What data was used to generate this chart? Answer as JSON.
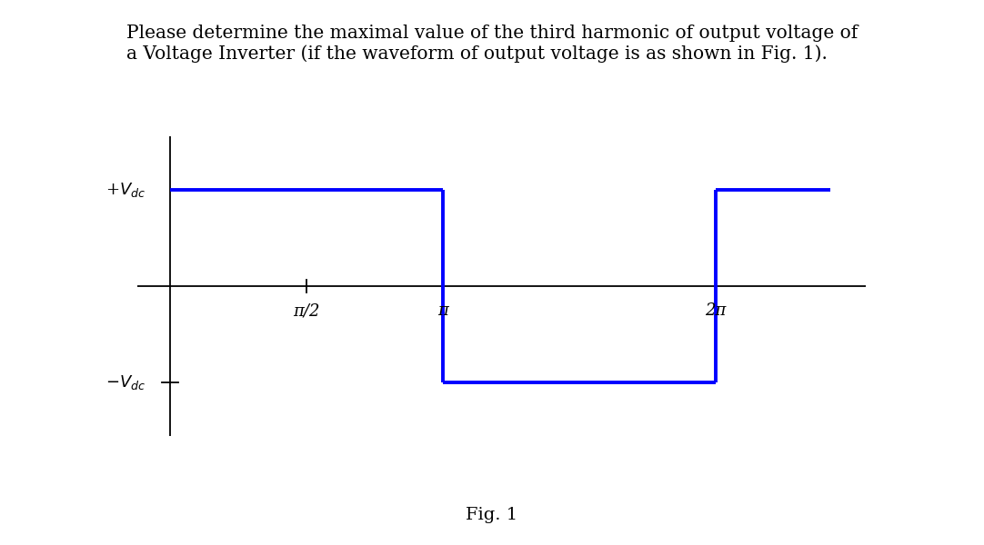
{
  "title_text": "Please determine the maximal value of the third harmonic of output voltage of\na Voltage Inverter (if the waveform of output voltage is as shown in Fig. 1).",
  "title_fontsize": 14.5,
  "fig_label": "Fig. 1",
  "waveform_color": "#0000FF",
  "waveform_linewidth": 2.8,
  "axis_color": "#000000",
  "axis_linewidth": 1.3,
  "background_color": "#FFFFFF",
  "vdc": 1.0,
  "x_tick_labels": [
    "π/2",
    "π",
    "2π"
  ],
  "y_label_plus": "+$V_{dc}$",
  "y_label_minus": "$-V_{dc}$",
  "xlim_left": -0.12,
  "xlim_right": 2.55,
  "ylim_bottom": -1.55,
  "ylim_top": 1.55,
  "pi_half_x": 0.5,
  "pi_x": 1.0,
  "two_pi_x": 2.0,
  "wave_end_x": 2.42,
  "tick_label_fontsize": 13,
  "ylabel_fontsize": 13
}
